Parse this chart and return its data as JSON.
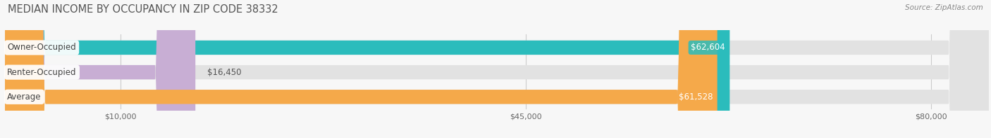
{
  "title": "MEDIAN INCOME BY OCCUPANCY IN ZIP CODE 38332",
  "source": "Source: ZipAtlas.com",
  "categories": [
    "Owner-Occupied",
    "Renter-Occupied",
    "Average"
  ],
  "values": [
    62604,
    16450,
    61528
  ],
  "bar_colors": [
    "#2bbcbc",
    "#c8aed4",
    "#f5a94a"
  ],
  "bar_bg_color": "#e2e2e2",
  "value_labels": [
    "$62,604",
    "$16,450",
    "$61,528"
  ],
  "x_ticks": [
    10000,
    45000,
    80000
  ],
  "x_tick_labels": [
    "$10,000",
    "$45,000",
    "$80,000"
  ],
  "xmax": 85000,
  "xmin": 0,
  "bar_height": 0.58,
  "title_fontsize": 10.5,
  "label_fontsize": 8.5,
  "tick_fontsize": 8,
  "source_fontsize": 7.5,
  "bg_color": "#f7f7f7",
  "title_color": "#555555",
  "source_color": "#888888"
}
